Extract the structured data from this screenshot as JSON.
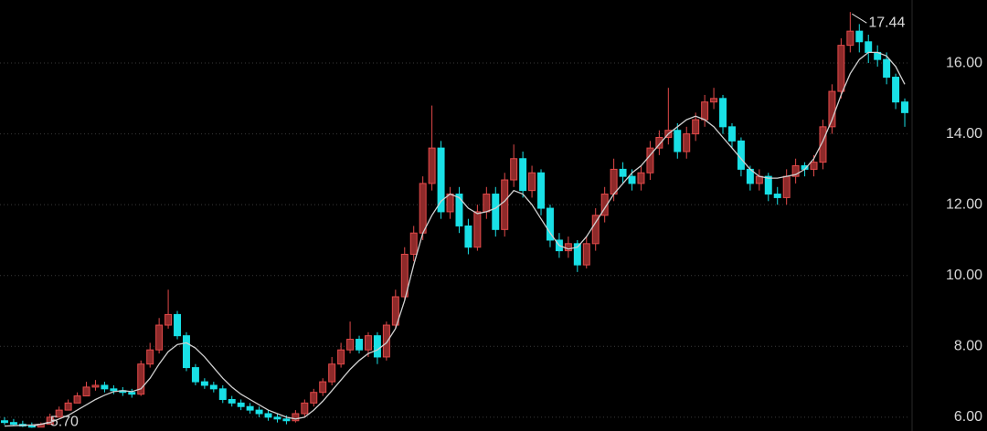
{
  "chart_data": {
    "type": "candlestick",
    "open": [
      5.9,
      5.85,
      5.8,
      5.75,
      5.72,
      5.8,
      6.0,
      6.2,
      6.4,
      6.6,
      6.85,
      6.9,
      6.8,
      6.75,
      6.7,
      6.65,
      7.5,
      7.9,
      8.6,
      8.9,
      8.3,
      7.4,
      7.0,
      6.9,
      6.8,
      6.5,
      6.4,
      6.3,
      6.2,
      6.1,
      6.0,
      5.95,
      5.9,
      6.1,
      6.4,
      6.7,
      7.0,
      7.5,
      7.9,
      8.2,
      7.9,
      8.3,
      7.7,
      8.6,
      9.4,
      10.6,
      11.2,
      12.6,
      13.6,
      11.8,
      12.3,
      11.4,
      10.8,
      11.8,
      12.3,
      11.3,
      12.7,
      13.3,
      12.4,
      12.9,
      11.9,
      11.0,
      10.7,
      10.9,
      10.3,
      10.9,
      11.7,
      12.3,
      13.0,
      12.8,
      12.6,
      12.9,
      13.6,
      13.9,
      14.1,
      13.5,
      14.0,
      14.4,
      14.9,
      15.0,
      14.2,
      13.8,
      13.0,
      12.6,
      12.8,
      12.3,
      12.2,
      12.8,
      13.1,
      13.0,
      13.2,
      14.2,
      15.2,
      16.5,
      16.9,
      16.6,
      16.3,
      16.1,
      15.6,
      14.9
    ],
    "high": [
      6.0,
      5.95,
      5.9,
      5.85,
      5.85,
      6.1,
      6.3,
      6.5,
      6.7,
      7.0,
      7.05,
      7.0,
      6.9,
      6.85,
      6.8,
      7.6,
      8.1,
      8.8,
      9.6,
      9.0,
      8.4,
      7.5,
      7.1,
      7.0,
      6.9,
      6.6,
      6.5,
      6.4,
      6.3,
      6.2,
      6.1,
      6.05,
      6.2,
      6.5,
      6.8,
      7.1,
      7.7,
      8.1,
      8.7,
      8.3,
      8.4,
      8.4,
      8.7,
      9.6,
      10.8,
      11.4,
      12.8,
      14.8,
      13.8,
      12.5,
      12.5,
      11.6,
      12.0,
      12.5,
      12.5,
      12.9,
      13.7,
      13.5,
      13.1,
      13.0,
      12.0,
      11.2,
      11.1,
      11.0,
      11.1,
      11.9,
      12.5,
      13.3,
      13.2,
      13.0,
      13.1,
      13.8,
      14.1,
      15.3,
      14.3,
      14.2,
      14.6,
      15.1,
      15.3,
      15.1,
      14.3,
      13.9,
      13.1,
      13.0,
      12.9,
      12.5,
      13.0,
      13.3,
      13.2,
      13.4,
      14.4,
      15.4,
      16.7,
      17.44,
      17.1,
      16.8,
      16.5,
      16.3,
      15.7,
      15.0
    ],
    "low": [
      5.78,
      5.75,
      5.72,
      5.7,
      5.74,
      5.9,
      6.1,
      6.3,
      6.5,
      6.7,
      6.75,
      6.7,
      6.65,
      6.6,
      6.55,
      6.6,
      7.4,
      7.8,
      8.5,
      8.2,
      7.3,
      6.9,
      6.8,
      6.7,
      6.4,
      6.3,
      6.2,
      6.1,
      6.0,
      5.9,
      5.85,
      5.8,
      5.85,
      6.0,
      6.3,
      6.6,
      6.9,
      7.4,
      7.8,
      7.8,
      7.7,
      7.5,
      7.6,
      8.5,
      9.3,
      10.4,
      11.0,
      12.4,
      11.6,
      11.6,
      11.2,
      10.6,
      10.7,
      11.6,
      11.1,
      11.1,
      12.5,
      12.2,
      12.2,
      11.7,
      10.8,
      10.5,
      10.5,
      10.1,
      10.2,
      10.7,
      11.5,
      12.1,
      12.6,
      12.4,
      12.4,
      12.7,
      13.4,
      13.7,
      13.3,
      13.3,
      13.8,
      14.2,
      14.7,
      14.0,
      13.6,
      12.8,
      12.4,
      12.4,
      12.1,
      12.0,
      12.0,
      12.6,
      12.8,
      12.8,
      13.0,
      14.0,
      15.0,
      16.3,
      16.3,
      16.0,
      15.9,
      15.4,
      14.7,
      14.2
    ],
    "close": [
      5.85,
      5.8,
      5.75,
      5.72,
      5.8,
      6.0,
      6.2,
      6.4,
      6.6,
      6.85,
      6.9,
      6.8,
      6.75,
      6.7,
      6.65,
      7.5,
      7.9,
      8.6,
      8.9,
      8.3,
      7.4,
      7.0,
      6.9,
      6.8,
      6.5,
      6.4,
      6.3,
      6.2,
      6.1,
      6.0,
      5.95,
      5.9,
      6.1,
      6.4,
      6.7,
      7.0,
      7.5,
      7.9,
      8.2,
      7.9,
      8.3,
      7.7,
      8.6,
      9.4,
      10.6,
      11.2,
      12.6,
      13.6,
      11.8,
      12.3,
      11.4,
      10.8,
      11.8,
      12.3,
      11.3,
      12.7,
      13.3,
      12.4,
      12.9,
      11.9,
      11.0,
      10.7,
      10.9,
      10.3,
      10.9,
      11.7,
      12.3,
      13.0,
      12.8,
      12.6,
      12.9,
      13.6,
      13.9,
      14.1,
      13.5,
      14.0,
      14.4,
      14.9,
      15.0,
      14.2,
      13.8,
      13.0,
      12.6,
      12.8,
      12.3,
      12.2,
      12.8,
      13.1,
      13.0,
      13.2,
      14.2,
      15.2,
      16.5,
      16.9,
      16.6,
      16.3,
      16.1,
      15.6,
      14.9,
      14.6
    ],
    "moving_average": {
      "color": "#d0d0d0",
      "values": [
        5.75,
        5.76,
        5.77,
        5.78,
        5.8,
        5.85,
        5.95,
        6.05,
        6.2,
        6.35,
        6.5,
        6.62,
        6.72,
        6.75,
        6.72,
        6.8,
        7.1,
        7.5,
        7.85,
        8.05,
        8.1,
        7.95,
        7.7,
        7.4,
        7.1,
        6.85,
        6.65,
        6.5,
        6.35,
        6.2,
        6.1,
        6.0,
        5.95,
        6.0,
        6.2,
        6.45,
        6.75,
        7.05,
        7.35,
        7.6,
        7.8,
        7.9,
        8.1,
        8.5,
        9.3,
        10.3,
        11.2,
        11.7,
        12.1,
        12.3,
        12.2,
        11.9,
        11.75,
        11.8,
        11.9,
        12.1,
        12.4,
        12.3,
        12.0,
        11.6,
        11.2,
        10.85,
        10.75,
        10.8,
        11.1,
        11.5,
        11.9,
        12.3,
        12.6,
        12.9,
        13.1,
        13.4,
        13.7,
        14.0,
        14.2,
        14.4,
        14.5,
        14.4,
        14.2,
        13.9,
        13.6,
        13.3,
        13.0,
        12.8,
        12.75,
        12.75,
        12.8,
        12.85,
        13.0,
        13.3,
        13.8,
        14.4,
        15.1,
        15.7,
        16.1,
        16.3,
        16.3,
        16.2,
        15.9,
        15.4
      ]
    },
    "up_color": "#e24a4a",
    "up_fill": "#8e2a2a",
    "down_color": "#19e0e6",
    "annotations": [
      {
        "value": 17.44,
        "label": "17.44"
      },
      {
        "value": 5.7,
        "label": "5.70"
      }
    ],
    "ylim": [
      5.61,
      17.78
    ],
    "yticks": [
      {
        "value": 6,
        "label": "6.00"
      },
      {
        "value": 8,
        "label": "8.00"
      },
      {
        "value": 10,
        "label": "10.00"
      },
      {
        "value": 12,
        "label": "12.00"
      },
      {
        "value": 14,
        "label": "14.00"
      },
      {
        "value": 16,
        "label": "16.00"
      }
    ],
    "grid": true
  }
}
